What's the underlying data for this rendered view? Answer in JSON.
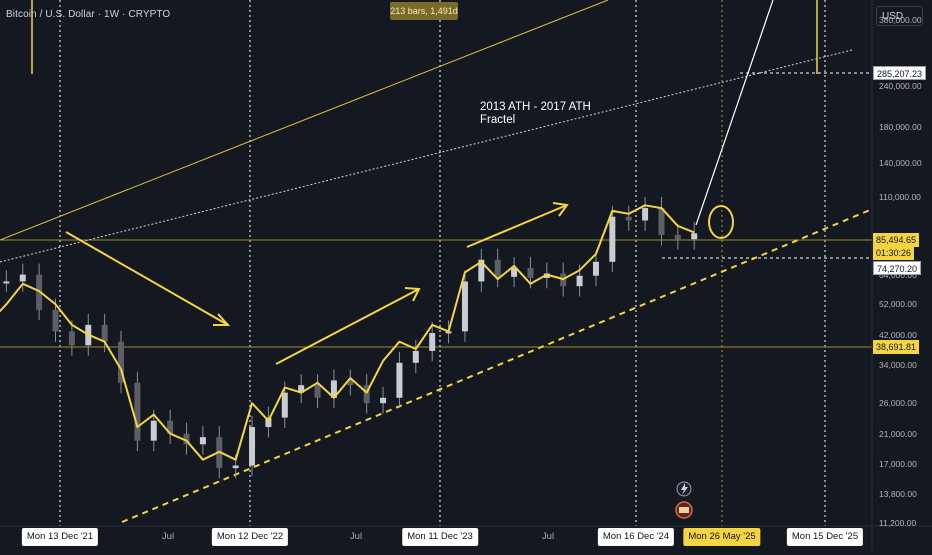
{
  "header": {
    "title": "Bitcoin / U.S. Dollar · 1W · CRYPTO",
    "currency_button": "USD",
    "range_tooltip": "213 bars, 1,491d"
  },
  "annotation": {
    "line1": "2013 ATH - 2017 ATH",
    "line2": "Fractel"
  },
  "price_tags": {
    "upper_level": "285,207.23",
    "current_price": "85,494.65",
    "countdown": "01:30:26",
    "lower_level": "74,270.20",
    "support_level": "38,691.81"
  },
  "axis": {
    "y_ticks": [
      "380,000.00",
      "240,000.00",
      "180,000.00",
      "140,000.00",
      "110,000.00",
      "64,000.00",
      "52,000.00",
      "42,000.00",
      "34,000.00",
      "26,000.00",
      "21,000.00",
      "17,000.00",
      "13,800.00",
      "11,200.00"
    ],
    "x_labels": [
      {
        "text": "Mon 13 Dec '21",
        "style": "white"
      },
      {
        "text": "Jul",
        "style": "plain"
      },
      {
        "text": "Mon 12 Dec '22",
        "style": "white"
      },
      {
        "text": "Jul",
        "style": "plain"
      },
      {
        "text": "Mon 11 Dec '23",
        "style": "white"
      },
      {
        "text": "Jul",
        "style": "plain"
      },
      {
        "text": "Mon 16 Dec '24",
        "style": "white"
      },
      {
        "text": "Mon 26 May '25",
        "style": "yellow"
      },
      {
        "text": "Mon 15 Dec '25",
        "style": "white"
      }
    ]
  },
  "colors": {
    "background": "#141821",
    "candles": "#8c8f96",
    "fractal_line": "#f5d442",
    "grid_dotted": "#ffffff"
  },
  "chart_data": {
    "type": "line",
    "scale": "log",
    "ylim": [
      11000,
      420000
    ],
    "x_range": [
      "2021-09",
      "2026-02"
    ],
    "series": [
      {
        "type": "candlestick",
        "points": [
          {
            "x": "2021-10",
            "y": 61000
          },
          {
            "x": "2021-11",
            "y": 64000
          },
          {
            "x": "2021-12",
            "y": 50000
          },
          {
            "x": "2022-01",
            "y": 43000
          },
          {
            "x": "2022-02",
            "y": 39000
          },
          {
            "x": "2022-03",
            "y": 45000
          },
          {
            "x": "2022-04",
            "y": 40000
          },
          {
            "x": "2022-05",
            "y": 30000
          },
          {
            "x": "2022-06",
            "y": 20000
          },
          {
            "x": "2022-07",
            "y": 23000
          },
          {
            "x": "2022-08",
            "y": 21000
          },
          {
            "x": "2022-09",
            "y": 19500
          },
          {
            "x": "2022-10",
            "y": 20500
          },
          {
            "x": "2022-11",
            "y": 16500
          },
          {
            "x": "2022-12",
            "y": 16800
          },
          {
            "x": "2023-01",
            "y": 22000
          },
          {
            "x": "2023-02",
            "y": 23500
          },
          {
            "x": "2023-03",
            "y": 28000
          },
          {
            "x": "2023-04",
            "y": 29500
          },
          {
            "x": "2023-05",
            "y": 27000
          },
          {
            "x": "2023-06",
            "y": 30500
          },
          {
            "x": "2023-07",
            "y": 29500
          },
          {
            "x": "2023-08",
            "y": 26000
          },
          {
            "x": "2023-09",
            "y": 27000
          },
          {
            "x": "2023-10",
            "y": 34500
          },
          {
            "x": "2023-11",
            "y": 37500
          },
          {
            "x": "2023-12",
            "y": 42500
          },
          {
            "x": "2024-01",
            "y": 43000
          },
          {
            "x": "2024-02",
            "y": 61000
          },
          {
            "x": "2024-03",
            "y": 71000
          },
          {
            "x": "2024-04",
            "y": 63000
          },
          {
            "x": "2024-05",
            "y": 67000
          },
          {
            "x": "2024-06",
            "y": 62500
          },
          {
            "x": "2024-07",
            "y": 64500
          },
          {
            "x": "2024-08",
            "y": 59000
          },
          {
            "x": "2024-09",
            "y": 63500
          },
          {
            "x": "2024-10",
            "y": 70000
          },
          {
            "x": "2024-11",
            "y": 96000
          },
          {
            "x": "2024-12",
            "y": 93500
          },
          {
            "x": "2025-01",
            "y": 102000
          },
          {
            "x": "2025-02",
            "y": 84500
          },
          {
            "x": "2025-03",
            "y": 82000
          },
          {
            "x": "2025-04",
            "y": 85500
          }
        ]
      },
      {
        "type": "line",
        "points": [
          {
            "x": "2021-09",
            "y": 46000
          },
          {
            "x": "2021-10",
            "y": 52000
          },
          {
            "x": "2021-11",
            "y": 60000
          },
          {
            "x": "2021-12",
            "y": 57000
          },
          {
            "x": "2022-01",
            "y": 52000
          },
          {
            "x": "2022-02",
            "y": 45000
          },
          {
            "x": "2022-03",
            "y": 42000
          },
          {
            "x": "2022-04",
            "y": 40000
          },
          {
            "x": "2022-05",
            "y": 33000
          },
          {
            "x": "2022-06",
            "y": 22000
          },
          {
            "x": "2022-07",
            "y": 24000
          },
          {
            "x": "2022-08",
            "y": 21000
          },
          {
            "x": "2022-09",
            "y": 20000
          },
          {
            "x": "2022-10",
            "y": 17500
          },
          {
            "x": "2022-11",
            "y": 18500
          },
          {
            "x": "2022-12",
            "y": 17500
          },
          {
            "x": "2023-01",
            "y": 26000
          },
          {
            "x": "2023-02",
            "y": 23000
          },
          {
            "x": "2023-03",
            "y": 29000
          },
          {
            "x": "2023-04",
            "y": 28000
          },
          {
            "x": "2023-05",
            "y": 30000
          },
          {
            "x": "2023-06",
            "y": 27000
          },
          {
            "x": "2023-07",
            "y": 31000
          },
          {
            "x": "2023-08",
            "y": 28000
          },
          {
            "x": "2023-09",
            "y": 35000
          },
          {
            "x": "2023-10",
            "y": 40000
          },
          {
            "x": "2023-11",
            "y": 38000
          },
          {
            "x": "2023-12",
            "y": 45000
          },
          {
            "x": "2024-01",
            "y": 43000
          },
          {
            "x": "2024-02",
            "y": 65000
          },
          {
            "x": "2024-03",
            "y": 70000
          },
          {
            "x": "2024-04",
            "y": 62000
          },
          {
            "x": "2024-05",
            "y": 68000
          },
          {
            "x": "2024-06",
            "y": 60000
          },
          {
            "x": "2024-07",
            "y": 64000
          },
          {
            "x": "2024-08",
            "y": 62000
          },
          {
            "x": "2024-09",
            "y": 66000
          },
          {
            "x": "2024-10",
            "y": 74000
          },
          {
            "x": "2024-11",
            "y": 100000
          },
          {
            "x": "2024-12",
            "y": 98000
          },
          {
            "x": "2025-01",
            "y": 104000
          },
          {
            "x": "2025-02",
            "y": 102000
          },
          {
            "x": "2025-03",
            "y": 90000
          },
          {
            "x": "2025-04",
            "y": 86000
          }
        ]
      }
    ]
  }
}
